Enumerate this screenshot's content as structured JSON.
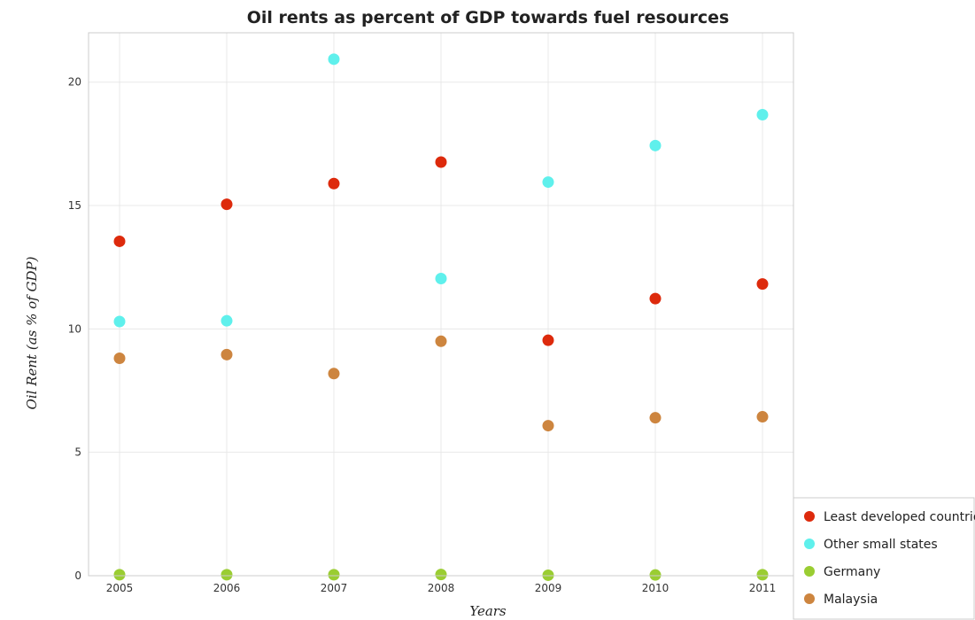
{
  "chart_data": {
    "type": "scatter",
    "title": "Oil rents as percent of GDP towards fuel resources",
    "xlabel": "Years",
    "ylabel": "Oil Rent (as % of GDP)",
    "x": [
      "2005",
      "2006",
      "2007",
      "2008",
      "2009",
      "2010",
      "2011"
    ],
    "ylim": [
      0,
      22
    ],
    "yticks": [
      0,
      5,
      10,
      15,
      20
    ],
    "grid": true,
    "legend_position": "bottom-right",
    "series": [
      {
        "name": "Least developed countries",
        "color": "#dd2a0c",
        "values": [
          13.55,
          15.05,
          15.89,
          16.76,
          9.54,
          11.23,
          11.82
        ]
      },
      {
        "name": "Other small states",
        "color": "#5ff0ec",
        "values": [
          10.3,
          10.33,
          20.93,
          12.04,
          15.95,
          17.43,
          18.68
        ]
      },
      {
        "name": "Germany",
        "color": "#9acd32",
        "values": [
          0.04,
          0.04,
          0.04,
          0.05,
          0.02,
          0.03,
          0.04
        ]
      },
      {
        "name": "Malaysia",
        "color": "#cd853f",
        "values": [
          8.81,
          8.96,
          8.19,
          9.5,
          6.08,
          6.4,
          6.44
        ]
      }
    ]
  }
}
